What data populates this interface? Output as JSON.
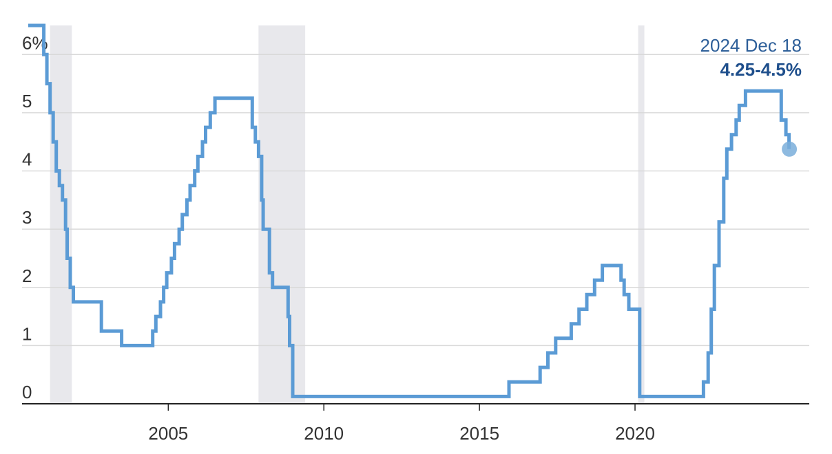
{
  "chart_data": {
    "type": "line",
    "style": "step",
    "title": "",
    "xlabel": "",
    "ylabel": "",
    "xlim": [
      2000.3,
      2025.6
    ],
    "ylim": [
      0,
      6.5
    ],
    "x_ticks": [
      2005,
      2010,
      2015,
      2020
    ],
    "x_tick_labels": [
      "2005",
      "2010",
      "2015",
      "2020"
    ],
    "y_ticks": [
      0,
      1,
      2,
      3,
      4,
      5,
      6
    ],
    "y_tick_labels": [
      "0",
      "1",
      "2",
      "3",
      "4",
      "5",
      "6%"
    ],
    "grid": "horizontal",
    "recession_bands": [
      {
        "start": 2001.2,
        "end": 2001.9
      },
      {
        "start": 2007.9,
        "end": 2009.4
      },
      {
        "start": 2020.1,
        "end": 2020.3
      }
    ],
    "series": [
      {
        "name": "",
        "color": "#5b9bd5",
        "x": [
          2000.5,
          2001.0,
          2001.1,
          2001.2,
          2001.3,
          2001.4,
          2001.5,
          2001.6,
          2001.7,
          2001.75,
          2001.85,
          2001.95,
          2002.85,
          2003.5,
          2004.5,
          2004.6,
          2004.75,
          2004.85,
          2004.95,
          2005.1,
          2005.2,
          2005.35,
          2005.45,
          2005.6,
          2005.7,
          2005.85,
          2005.95,
          2006.1,
          2006.2,
          2006.35,
          2006.5,
          2007.7,
          2007.8,
          2007.9,
          2008.0,
          2008.05,
          2008.1,
          2008.25,
          2008.35,
          2008.5,
          2008.85,
          2008.9,
          2008.95,
          2009.0,
          2015.95,
          2016.95,
          2017.2,
          2017.45,
          2017.95,
          2018.2,
          2018.45,
          2018.7,
          2018.95,
          2019.55,
          2019.65,
          2019.8,
          2020.15,
          2020.2,
          2022.2,
          2022.35,
          2022.45,
          2022.55,
          2022.7,
          2022.85,
          2022.95,
          2023.1,
          2023.25,
          2023.35,
          2023.55,
          2024.7,
          2024.85,
          2024.95
        ],
        "y": [
          6.5,
          6.0,
          5.5,
          5.0,
          4.5,
          4.0,
          3.75,
          3.5,
          3.0,
          2.5,
          2.0,
          1.75,
          1.25,
          1.0,
          1.25,
          1.5,
          1.75,
          2.0,
          2.25,
          2.5,
          2.75,
          3.0,
          3.25,
          3.5,
          3.75,
          4.0,
          4.25,
          4.5,
          4.75,
          5.0,
          5.25,
          4.75,
          4.5,
          4.25,
          3.5,
          3.0,
          3.0,
          2.25,
          2.0,
          2.0,
          1.5,
          1.0,
          1.0,
          0.125,
          0.375,
          0.625,
          0.875,
          1.125,
          1.375,
          1.625,
          1.875,
          2.125,
          2.375,
          2.125,
          1.875,
          1.625,
          0.125,
          0.125,
          0.375,
          0.875,
          1.625,
          2.375,
          3.125,
          3.875,
          4.375,
          4.625,
          4.875,
          5.125,
          5.375,
          4.875,
          4.625,
          4.375
        ]
      }
    ],
    "annotation": {
      "date_label": "2024 Dec 18",
      "value_label": "4.25-4.5%",
      "x": 2024.96,
      "y": 4.375
    }
  }
}
